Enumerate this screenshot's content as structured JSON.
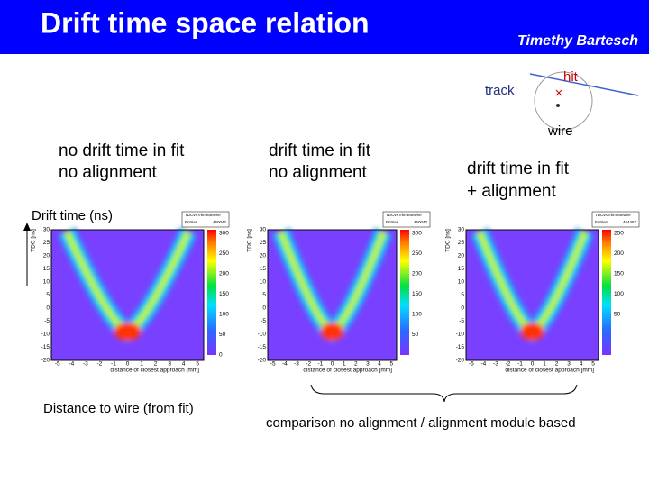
{
  "header": {
    "title": "Drift time space relation",
    "author": "Timethy Bartesch"
  },
  "diagram": {
    "track": "track",
    "hit": "hit",
    "wire": "wire"
  },
  "columns": [
    {
      "line1": "no drift time in fit",
      "line2": "no alignment"
    },
    {
      "line1": "drift time in fit",
      "line2": "no alignment"
    },
    {
      "line1": "drift time  in fit",
      "line2": "+ alignment"
    }
  ],
  "y_axis_label": "Drift time (ns)",
  "x_axis_label": "Distance to wire (from fit)",
  "comparison": "comparison no alignment / alignment module based",
  "plots": [
    {
      "stats_title": "TDCvsTrkmeanwire",
      "entries_label": "Entries",
      "entries": "460042",
      "y_label": "TDC [ns]",
      "x_label": "distance of closest approach [mm]",
      "yticks": [
        30,
        25,
        20,
        15,
        10,
        5,
        0,
        -5,
        -10,
        -15,
        -20
      ],
      "xticks": [
        -5,
        -4,
        -3,
        -2,
        -1,
        0,
        1,
        2,
        3,
        4,
        5
      ],
      "zticks": [
        300,
        250,
        200,
        150,
        100,
        50,
        0
      ]
    },
    {
      "stats_title": "TDCvsTrkmeanwire",
      "entries_label": "Entries",
      "entries": "460042",
      "y_label": "TDC [ns]",
      "x_label": "distance of closest approach [mm]",
      "yticks": [
        30,
        25,
        20,
        15,
        10,
        5,
        0,
        -5,
        -10,
        -15,
        -20
      ],
      "xticks": [
        -5,
        -4,
        -3,
        -2,
        -1,
        0,
        1,
        2,
        3,
        4,
        5
      ],
      "zticks": [
        300,
        250,
        200,
        150,
        100,
        50
      ]
    },
    {
      "stats_title": "TDCvsTrkmeanwire",
      "entries_label": "Entries",
      "entries": "464457",
      "y_label": "TDC [ns]",
      "x_label": "distance of closest approach [mm]",
      "yticks": [
        30,
        25,
        20,
        15,
        10,
        5,
        0,
        -5,
        -10,
        -15,
        -20
      ],
      "xticks": [
        -5,
        -4,
        -3,
        -2,
        -1,
        0,
        1,
        2,
        3,
        4,
        5
      ],
      "zticks": [
        250,
        200,
        150,
        100,
        50
      ]
    }
  ]
}
